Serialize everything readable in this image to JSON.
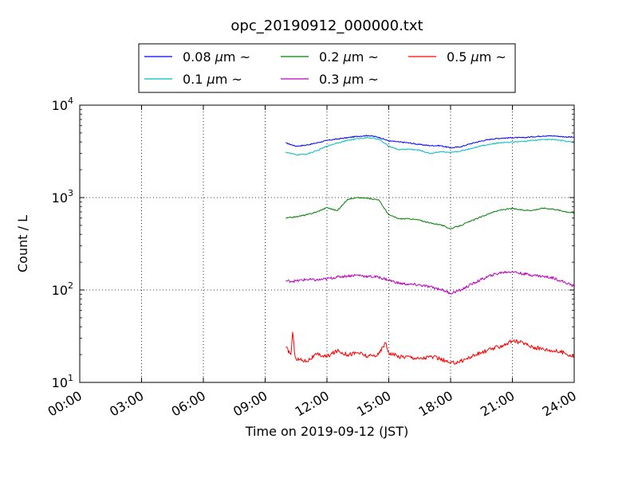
{
  "chart_data": {
    "type": "line",
    "title": "opc_20190912_000000.txt",
    "xlabel": "Time on 2019-09-12 (JST)",
    "ylabel": "Count / L",
    "xscale": "time",
    "yscale": "log",
    "xlim": [
      "00:00",
      "24:00"
    ],
    "ylim": [
      10,
      10000
    ],
    "x_ticks": [
      "00:00",
      "03:00",
      "06:00",
      "09:00",
      "12:00",
      "15:00",
      "18:00",
      "21:00",
      "24:00"
    ],
    "y_ticks": [
      {
        "base": "10",
        "exp": "1"
      },
      {
        "base": "10",
        "exp": "2"
      },
      {
        "base": "10",
        "exp": "3"
      },
      {
        "base": "10",
        "exp": "4"
      }
    ],
    "grid": true,
    "legend_position": "top-center",
    "series": [
      {
        "name": "0.08 μm ~",
        "legend_prefix": "0.08 ",
        "color": "#0000ff",
        "x": [
          "10:00",
          "10:30",
          "11:00",
          "11:30",
          "12:00",
          "12:30",
          "13:00",
          "13:30",
          "14:00",
          "14:30",
          "15:00",
          "15:30",
          "16:00",
          "16:30",
          "17:00",
          "17:30",
          "18:00",
          "18:30",
          "19:00",
          "19:30",
          "20:00",
          "20:30",
          "21:00",
          "21:30",
          "22:00",
          "22:30",
          "23:00",
          "23:30",
          "24:00"
        ],
        "y": [
          3900,
          3600,
          3700,
          3900,
          4150,
          4300,
          4450,
          4600,
          4700,
          4500,
          4100,
          4000,
          3900,
          3750,
          3650,
          3650,
          3450,
          3550,
          3850,
          4100,
          4300,
          4400,
          4450,
          4450,
          4550,
          4650,
          4650,
          4550,
          4500
        ]
      },
      {
        "name": "0.1 μm ~",
        "legend_prefix": "0.1 ",
        "color": "#00bfbf",
        "x": [
          "10:00",
          "10:30",
          "11:00",
          "11:30",
          "12:00",
          "12:30",
          "13:00",
          "13:30",
          "14:00",
          "14:30",
          "15:00",
          "15:30",
          "16:00",
          "16:30",
          "17:00",
          "17:30",
          "18:00",
          "18:30",
          "19:00",
          "19:30",
          "20:00",
          "20:30",
          "21:00",
          "21:30",
          "22:00",
          "22:30",
          "23:00",
          "23:30",
          "24:00"
        ],
        "y": [
          3100,
          2900,
          2950,
          3200,
          3600,
          3900,
          4150,
          4350,
          4450,
          4300,
          3600,
          3300,
          3350,
          3250,
          3000,
          3150,
          3050,
          3200,
          3400,
          3650,
          3800,
          3950,
          4000,
          4050,
          4150,
          4250,
          4250,
          4100,
          3950
        ]
      },
      {
        "name": "0.2 μm ~",
        "legend_prefix": "0.2 ",
        "color": "#008000",
        "x": [
          "10:00",
          "10:30",
          "11:00",
          "11:30",
          "12:00",
          "12:30",
          "13:00",
          "13:30",
          "14:00",
          "14:30",
          "15:00",
          "15:30",
          "16:00",
          "16:30",
          "17:00",
          "17:30",
          "18:00",
          "18:30",
          "19:00",
          "19:30",
          "20:00",
          "20:30",
          "21:00",
          "21:30",
          "22:00",
          "22:30",
          "23:00",
          "23:30",
          "24:00"
        ],
        "y": [
          600,
          620,
          650,
          700,
          780,
          720,
          960,
          1000,
          980,
          950,
          650,
          590,
          590,
          570,
          530,
          510,
          460,
          500,
          560,
          620,
          690,
          740,
          760,
          730,
          730,
          770,
          750,
          710,
          680
        ]
      },
      {
        "name": "0.3 μm ~",
        "legend_prefix": "0.3 ",
        "color": "#bf00bf",
        "x": [
          "10:00",
          "10:30",
          "11:00",
          "11:30",
          "12:00",
          "12:30",
          "13:00",
          "13:30",
          "14:00",
          "14:30",
          "15:00",
          "15:30",
          "16:00",
          "16:30",
          "17:00",
          "17:30",
          "18:00",
          "18:30",
          "19:00",
          "19:30",
          "20:00",
          "20:30",
          "21:00",
          "21:30",
          "22:00",
          "22:30",
          "23:00",
          "23:30",
          "24:00"
        ],
        "y": [
          125,
          125,
          130,
          128,
          132,
          138,
          142,
          145,
          140,
          138,
          128,
          118,
          115,
          113,
          108,
          102,
          92,
          100,
          115,
          130,
          145,
          155,
          158,
          150,
          145,
          140,
          135,
          122,
          110
        ]
      },
      {
        "name": "0.5 μm ~",
        "legend_prefix": "0.5 ",
        "color": "#ff0000",
        "x": [
          "10:00",
          "10:15",
          "10:20",
          "10:25",
          "10:30",
          "11:00",
          "11:30",
          "12:00",
          "12:30",
          "13:00",
          "13:30",
          "14:00",
          "14:30",
          "14:50",
          "15:00",
          "15:30",
          "16:00",
          "16:30",
          "17:00",
          "17:30",
          "18:00",
          "18:30",
          "19:00",
          "19:30",
          "20:00",
          "20:30",
          "21:00",
          "21:30",
          "22:00",
          "22:30",
          "23:00",
          "23:30",
          "24:00"
        ],
        "y": [
          24,
          20,
          35,
          22,
          18,
          17,
          20,
          19,
          22,
          20,
          21,
          19,
          20,
          27,
          21,
          19,
          19,
          18,
          19,
          18,
          16,
          17,
          19,
          21,
          23,
          25,
          28,
          27,
          24,
          23,
          22,
          21,
          19
        ]
      }
    ]
  }
}
